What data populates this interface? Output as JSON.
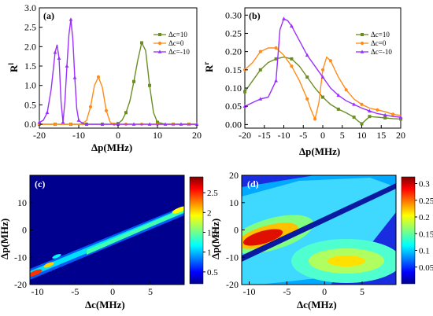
{
  "chart_data": [
    {
      "panel": "(a)",
      "type": "line",
      "xlabel": "Δp(MHz)",
      "ylabel": "R^l",
      "xlim": [
        -20,
        20
      ],
      "ylim": [
        -0.1,
        3.0
      ],
      "xticks": [
        -20,
        -10,
        0,
        10,
        20
      ],
      "yticks": [
        0.0,
        0.5,
        1.0,
        1.5,
        2.0,
        2.5,
        3.0
      ],
      "legend_position": "top-right",
      "series": [
        {
          "name": "Δc=10",
          "color": "#6b8e23",
          "marker": "square",
          "x": [
            -20,
            -18,
            -16,
            -14,
            -12,
            -10,
            -8,
            -6,
            -4,
            -2,
            0,
            1,
            2,
            3,
            4,
            5,
            6,
            7,
            8,
            9,
            10,
            12,
            14,
            16,
            18,
            20
          ],
          "y": [
            0,
            0,
            0,
            0,
            0,
            0,
            0,
            0,
            0,
            0,
            0.02,
            0.1,
            0.3,
            0.6,
            1.1,
            1.65,
            2.1,
            1.9,
            1.0,
            0.3,
            0.05,
            0,
            0,
            0,
            0,
            0
          ]
        },
        {
          "name": "Δc=0",
          "color": "#ff8c1a",
          "marker": "circle",
          "x": [
            -20,
            -18,
            -16,
            -14,
            -12,
            -10,
            -9,
            -8,
            -7,
            -6,
            -5,
            -4,
            -3,
            -2,
            -1,
            0,
            2,
            4,
            6,
            8,
            10,
            12,
            14,
            16,
            18,
            20
          ],
          "y": [
            0,
            0,
            0,
            0,
            0,
            0,
            0.02,
            0.1,
            0.45,
            1.0,
            1.22,
            0.95,
            0.35,
            0.05,
            0,
            0,
            0,
            0,
            0,
            0,
            0,
            0,
            0,
            0,
            0,
            0
          ]
        },
        {
          "name": "Δc=-10",
          "color": "#9b30ff",
          "marker": "triangle",
          "x": [
            -20,
            -19,
            -18,
            -17,
            -16,
            -15.5,
            -15,
            -14.5,
            -14,
            -13.5,
            -13,
            -12.5,
            -12,
            -11.5,
            -11,
            -10.5,
            -10,
            -9,
            -8,
            -6,
            -4,
            -2,
            0,
            2,
            4,
            6,
            8,
            10,
            12,
            14,
            16,
            18,
            20
          ],
          "y": [
            0.05,
            0.1,
            0.3,
            0.9,
            1.85,
            2.05,
            1.7,
            0.6,
            0.05,
            0.6,
            1.5,
            2.3,
            2.7,
            2.2,
            1.2,
            0.4,
            0.1,
            0.02,
            0,
            0,
            0,
            0,
            0,
            0,
            0,
            0,
            0,
            0,
            0,
            0,
            0,
            0,
            0
          ]
        }
      ]
    },
    {
      "panel": "(b)",
      "type": "line",
      "xlabel": "Δp(MHz)",
      "ylabel": "R^r",
      "xlim": [
        -20,
        20
      ],
      "ylim": [
        -0.01,
        0.32
      ],
      "xticks": [
        -20,
        -15,
        -10,
        -5,
        0,
        5,
        10,
        15,
        20
      ],
      "yticks": [
        0.0,
        0.05,
        0.1,
        0.15,
        0.2,
        0.25,
        0.3
      ],
      "legend_position": "top-right",
      "series": [
        {
          "name": "Δc=10",
          "color": "#6b8e23",
          "marker": "square",
          "x": [
            -20,
            -18,
            -16,
            -14,
            -12,
            -10,
            -8,
            -6,
            -4,
            -2,
            0,
            2,
            4,
            6,
            8,
            9,
            10,
            11,
            12,
            14,
            16,
            18,
            20
          ],
          "y": [
            0.09,
            0.12,
            0.15,
            0.17,
            0.18,
            0.185,
            0.18,
            0.16,
            0.13,
            0.1,
            0.075,
            0.055,
            0.042,
            0.032,
            0.02,
            0.01,
            0.002,
            0.012,
            0.022,
            0.02,
            0.018,
            0.016,
            0.015
          ]
        },
        {
          "name": "Δc=0",
          "color": "#ff8c1a",
          "marker": "circle",
          "x": [
            -20,
            -18,
            -16,
            -14,
            -12,
            -10,
            -8,
            -6,
            -4,
            -3,
            -2,
            -1,
            0,
            1,
            2,
            4,
            6,
            8,
            10,
            12,
            14,
            16,
            18,
            20
          ],
          "y": [
            0.15,
            0.17,
            0.2,
            0.21,
            0.21,
            0.19,
            0.16,
            0.12,
            0.07,
            0.04,
            0.015,
            0.06,
            0.15,
            0.185,
            0.175,
            0.13,
            0.095,
            0.07,
            0.055,
            0.045,
            0.04,
            0.035,
            0.028,
            0.025
          ]
        },
        {
          "name": "Δc=-10",
          "color": "#9b30ff",
          "marker": "triangle",
          "x": [
            -20,
            -18,
            -16,
            -14,
            -12,
            -11,
            -10,
            -9,
            -8,
            -6,
            -4,
            -2,
            0,
            2,
            4,
            6,
            8,
            10,
            12,
            14,
            16,
            18,
            20
          ],
          "y": [
            0.05,
            0.06,
            0.07,
            0.075,
            0.12,
            0.26,
            0.29,
            0.285,
            0.27,
            0.23,
            0.19,
            0.16,
            0.13,
            0.1,
            0.08,
            0.065,
            0.055,
            0.045,
            0.037,
            0.03,
            0.026,
            0.022,
            0.02
          ]
        }
      ]
    },
    {
      "panel": "(c)",
      "type": "heatmap",
      "xlabel": "Δc(MHz)",
      "ylabel": "Δp(MHz)",
      "xlim": [
        -11,
        9.5
      ],
      "ylim": [
        -20,
        20
      ],
      "xticks": [
        -10,
        -5,
        0,
        5
      ],
      "yticks": [
        -20,
        -10,
        0,
        10
      ],
      "colorbar_ticks": [
        0.5,
        1,
        1.5,
        2,
        2.5
      ],
      "colorbar_range": [
        0.2,
        2.9
      ]
    },
    {
      "panel": "(d)",
      "type": "heatmap",
      "xlabel": "Δc(MHz)",
      "ylabel": "Δp(MHz)",
      "xlim": [
        -11,
        9.5
      ],
      "ylim": [
        -20,
        20
      ],
      "xticks": [
        -10,
        -5,
        0,
        5
      ],
      "yticks": [
        -20,
        -10,
        0,
        10,
        20
      ],
      "colorbar_ticks": [
        0.05,
        0.1,
        0.15,
        0.2,
        0.25,
        0.3
      ],
      "colorbar_range": [
        0.0,
        0.32
      ]
    }
  ]
}
